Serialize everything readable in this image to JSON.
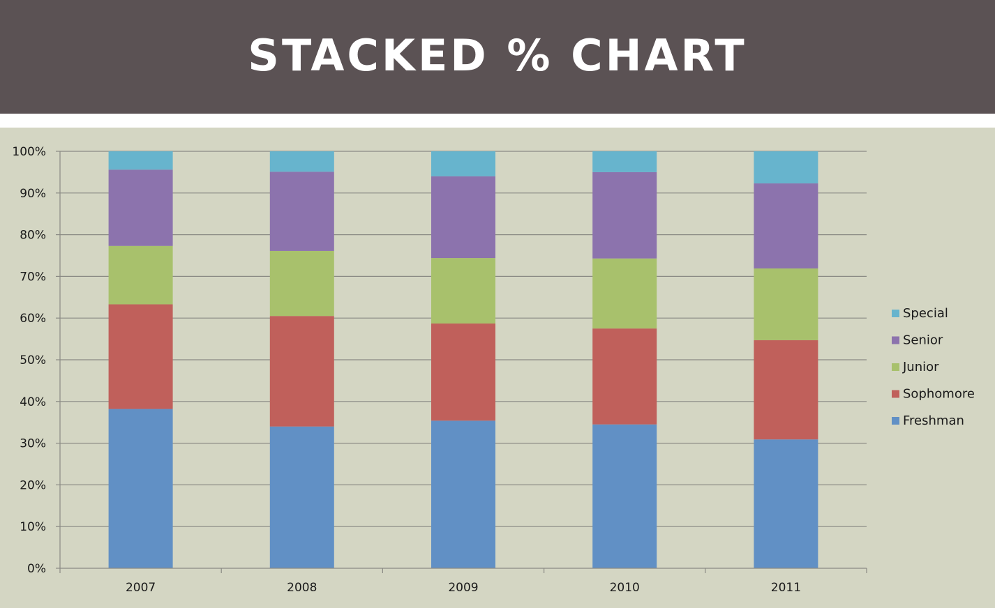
{
  "title": "STACKED % CHART",
  "colors": {
    "banner": "#5b5254",
    "panel": "#d4d6c3"
  },
  "chart_data": {
    "type": "bar",
    "stacked": true,
    "percent": true,
    "categories": [
      "2007",
      "2008",
      "2009",
      "2010",
      "2011"
    ],
    "ylim": [
      0,
      100
    ],
    "yticks": [
      "0%",
      "10%",
      "20%",
      "30%",
      "40%",
      "50%",
      "60%",
      "70%",
      "80%",
      "90%",
      "100%"
    ],
    "grid": true,
    "legend_position": "right",
    "series": [
      {
        "name": "Freshman",
        "color": "#6190c5",
        "values": [
          38.2,
          34.0,
          35.4,
          34.5,
          30.9
        ]
      },
      {
        "name": "Sophomore",
        "color": "#c0605b",
        "values": [
          25.1,
          26.5,
          23.3,
          23.0,
          23.8
        ]
      },
      {
        "name": "Junior",
        "color": "#a8c16c",
        "values": [
          14.0,
          15.6,
          15.7,
          16.8,
          17.2
        ]
      },
      {
        "name": "Senior",
        "color": "#8c73ad",
        "values": [
          18.3,
          19.0,
          19.6,
          20.7,
          20.4
        ]
      },
      {
        "name": "Special",
        "color": "#67b4cd",
        "values": [
          4.4,
          4.9,
          6.0,
          5.0,
          7.7
        ]
      }
    ]
  }
}
